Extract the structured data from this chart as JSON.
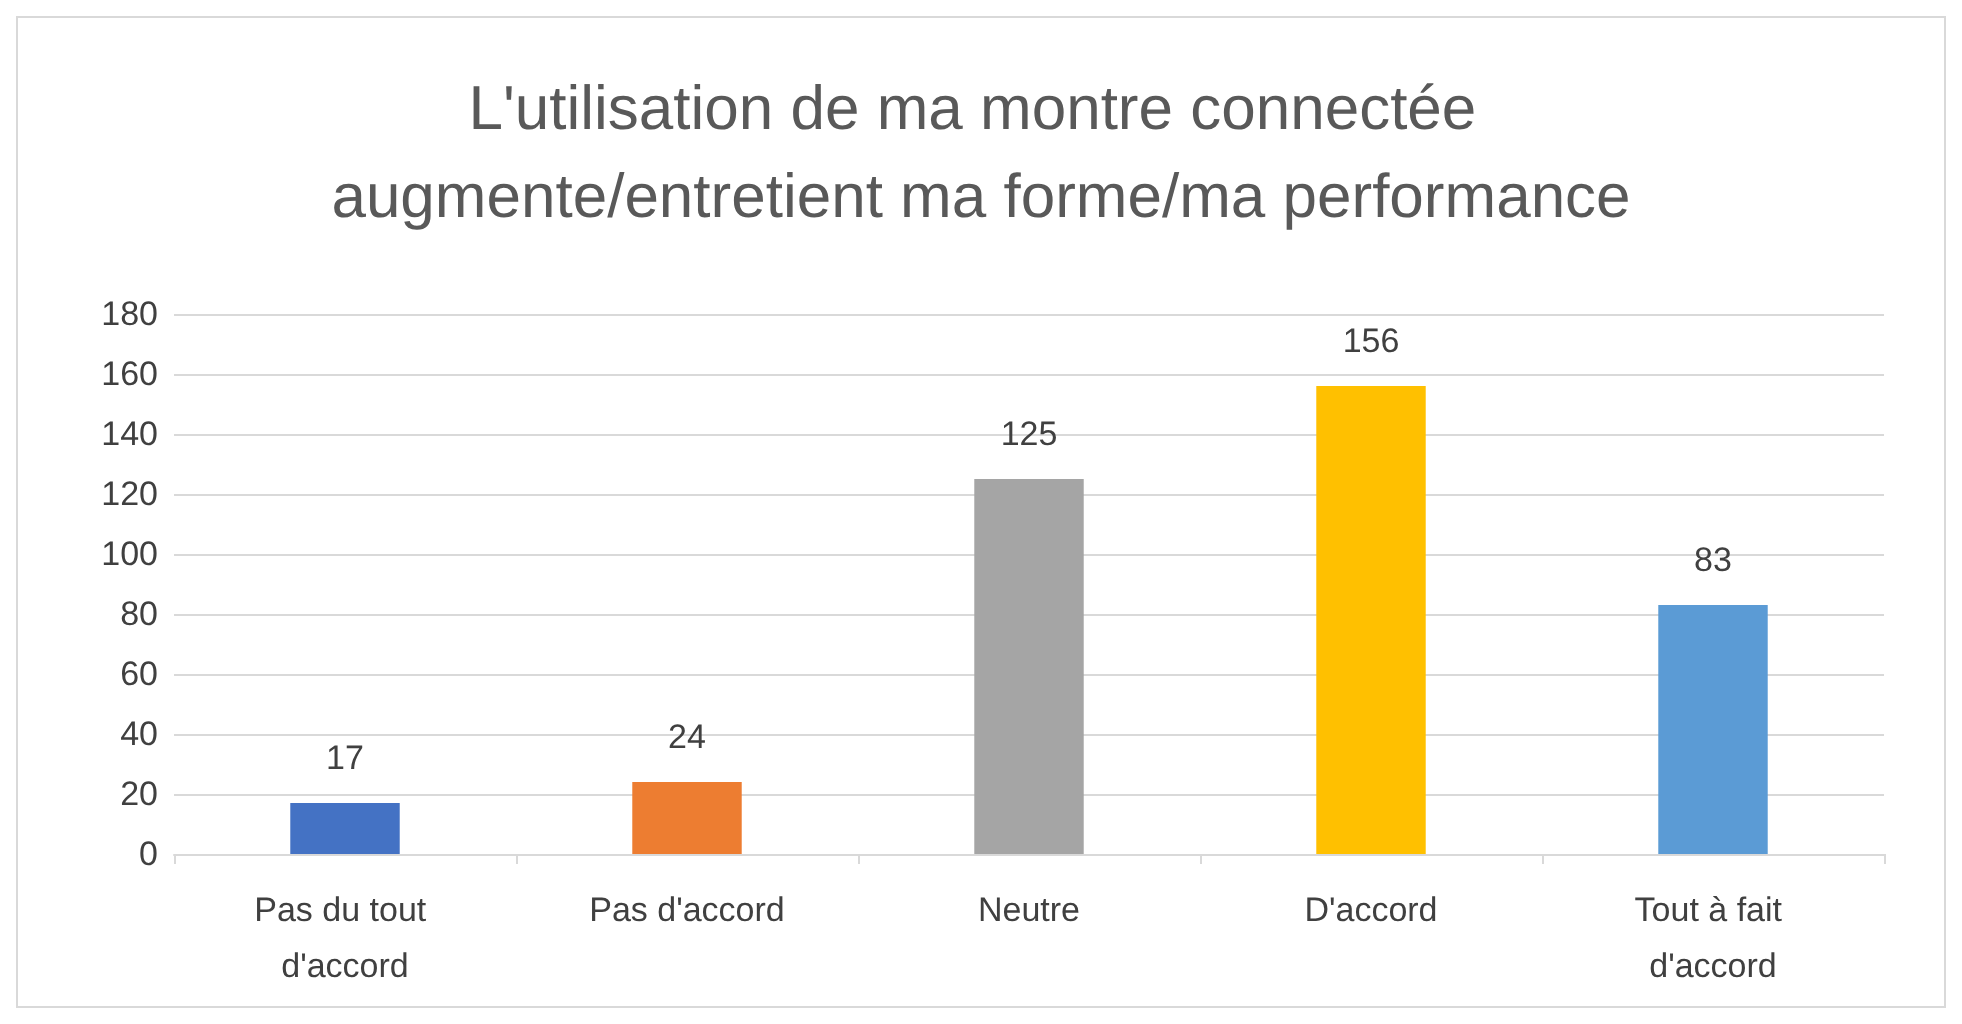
{
  "chart_data": {
    "type": "bar",
    "title": "L'utilisation de ma montre connectée augmente/entretient ma forme/ma performance",
    "categories": [
      "Pas du tout d'accord",
      "Pas d'accord",
      "Neutre",
      "D'accord",
      "Tout à fait d'accord"
    ],
    "values": [
      17,
      24,
      125,
      156,
      83
    ],
    "colors": [
      "#4472c4",
      "#ed7d31",
      "#a5a5a5",
      "#ffc000",
      "#5b9bd5"
    ],
    "ylim": [
      0,
      180
    ],
    "yticks": [
      0,
      20,
      40,
      60,
      80,
      100,
      120,
      140,
      160,
      180
    ],
    "grid": "y",
    "data_labels": true
  }
}
